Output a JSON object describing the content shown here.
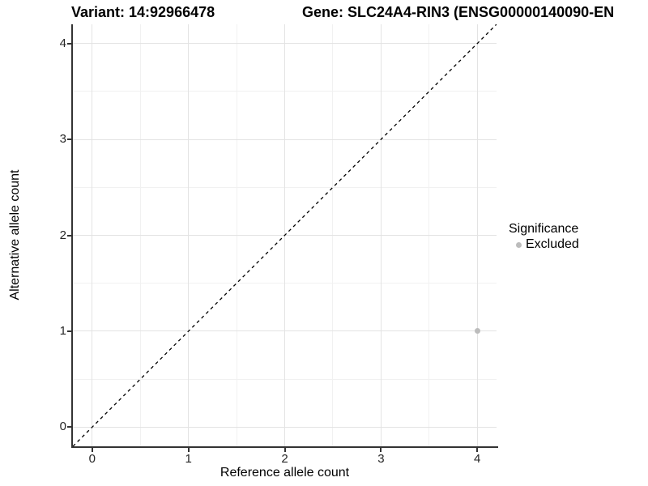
{
  "titles": {
    "variant": "Variant: 14:92966478",
    "gene": "Gene: SLC24A4-RIN3 (ENSG00000140090-EN"
  },
  "chart_data": {
    "type": "scatter",
    "xlabel": "Reference allele count",
    "ylabel": "Alternative allele count",
    "xlim": [
      -0.2,
      4.2
    ],
    "ylim": [
      -0.2,
      4.2
    ],
    "x_ticks": [
      0,
      1,
      2,
      3,
      4
    ],
    "y_ticks": [
      0,
      1,
      2,
      3,
      4
    ],
    "x_minor_ticks": [
      0.5,
      1.5,
      2.5,
      3.5
    ],
    "y_minor_ticks": [
      0.5,
      1.5,
      2.5,
      3.5
    ],
    "grid": true,
    "identity_line": {
      "style": "dashed",
      "from": [
        -0.2,
        -0.2
      ],
      "to": [
        4.2,
        4.2
      ],
      "color": "#000000"
    },
    "points": [
      {
        "x": 4,
        "y": 1,
        "series": "Excluded"
      }
    ],
    "legend": {
      "position": "right",
      "title": "Significance",
      "entries": [
        {
          "label": "Excluded",
          "color": "#bcbcbc"
        }
      ]
    }
  },
  "colors": {
    "background": "#ffffff",
    "axis_line": "#333333",
    "grid_major": "#e3e3e3",
    "grid_minor": "#f1f1f1",
    "excluded_point": "#bcbcbc"
  }
}
